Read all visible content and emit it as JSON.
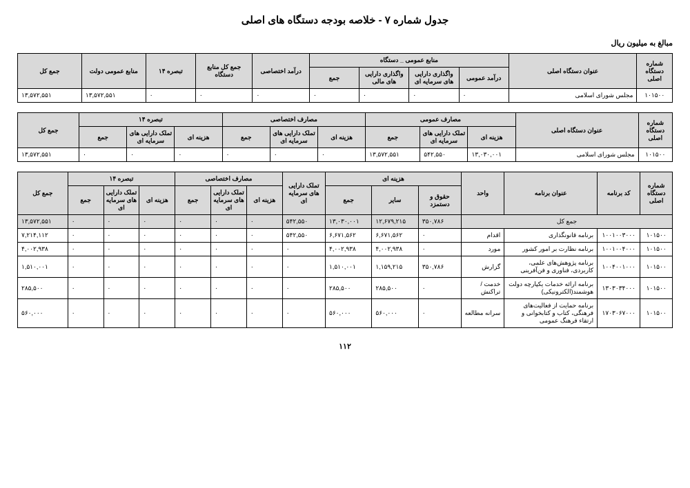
{
  "title": "جدول شماره ۷ - خلاصه بودجه دستگاه های اصلی",
  "currency_note": "مبالغ به میلیون ریال",
  "page_number": "۱۱۲",
  "t1": {
    "h": {
      "code": "شماره دستگاه اصلی",
      "org": "عنوان دستگاه اصلی",
      "public_resources": "منابع عمومی _ دستگاه",
      "general_income": "درآمد عمومی",
      "capital_assignment": "واگذاری دارایی های سرمایه ای",
      "financial_assignment": "واگذاری دارایی های مالی",
      "sum": "جمع",
      "special_income": "درآمد اختصاصی",
      "total_resources": "جمع کل منابع دستگاه",
      "note14": "تبصره ۱۴",
      "gov_resources": "منابع عمومی دولت",
      "grand_total": "جمع کل"
    },
    "row": {
      "code": "۱۰۱۵۰۰",
      "org": "مجلس شورای اسلامی",
      "general_income": "۰",
      "capital_assignment": "۰",
      "financial_assignment": "۰",
      "sum": "۰",
      "special_income": "۰",
      "total_resources": "۰",
      "note14": "۰",
      "gov_resources": "۱۳,۵۷۲,۵۵۱",
      "grand_total": "۱۳,۵۷۲,۵۵۱"
    }
  },
  "t2": {
    "h": {
      "code": "شماره دستگاه اصلی",
      "org": "عنوان دستگاه اصلی",
      "public_expenses": "مصارف عمومی",
      "cost": "هزینه ای",
      "capital_own": "تملک دارایی های سرمایه ای",
      "sum": "جمع",
      "special_expenses": "مصارف اختصاصی",
      "note14": "تبصره ۱۴",
      "grand_total": "جمع کل"
    },
    "row": {
      "code": "۱۰۱۵۰۰",
      "org": "مجلس شورای اسلامی",
      "p_cost": "۱۳,۰۳۰,۰۰۱",
      "p_capital": "۵۴۲,۵۵۰",
      "p_sum": "۱۳,۵۷۲,۵۵۱",
      "s_cost": "۰",
      "s_capital": "۰",
      "s_sum": "۰",
      "n_cost": "۰",
      "n_capital": "۰",
      "n_sum": "۰",
      "grand_total": "۱۳,۵۷۲,۵۵۱"
    }
  },
  "t3": {
    "h": {
      "code": "شماره دستگاه اصلی",
      "program_code": "کد برنامه",
      "program_title": "عنوان برنامه",
      "unit": "واحد",
      "cost_group": "هزینه ای",
      "salary": "حقوق و دستمزد",
      "other": "سایر",
      "sum": "جمع",
      "capital_own": "تملک دارایی های سرمایه ای",
      "special_expenses": "مصارف اختصاصی",
      "cost": "هزینه ای",
      "note14": "تبصره ۱۴",
      "grand_total": "جمع کل",
      "total_sum": "جمع کل"
    },
    "sumrow": {
      "label": "جمع کل",
      "salary": "۳۵۰,۷۸۶",
      "other": "۱۲,۶۷۹,۲۱۵",
      "sum": "۱۳,۰۳۰,۰۰۱",
      "capital": "۵۴۲,۵۵۰",
      "s_cost": "۰",
      "s_capital": "۰",
      "s_sum": "۰",
      "n_cost": "۰",
      "n_capital": "۰",
      "n_sum": "۰",
      "grand_total": "۱۳,۵۷۲,۵۵۱"
    },
    "rows": [
      {
        "code": "۱۰۱۵۰۰",
        "pcode": "۱۰۰۱۰۰۳۰۰۰",
        "title": "برنامه قانونگذاری",
        "unit": "اقدام",
        "salary": "۰",
        "other": "۶,۶۷۱,۵۶۲",
        "sum": "۶,۶۷۱,۵۶۲",
        "capital": "۵۴۲,۵۵۰",
        "s_cost": "۰",
        "s_capital": "۰",
        "s_sum": "۰",
        "n_cost": "۰",
        "n_capital": "۰",
        "n_sum": "۰",
        "grand_total": "۷,۲۱۴,۱۱۲"
      },
      {
        "code": "۱۰۱۵۰۰",
        "pcode": "۱۰۰۱۰۰۴۰۰۰",
        "title": "برنامه نظارت بر امور کشور",
        "unit": "مورد",
        "salary": "۰",
        "other": "۴,۰۰۲,۹۳۸",
        "sum": "۴,۰۰۲,۹۳۸",
        "capital": "۰",
        "s_cost": "۰",
        "s_capital": "۰",
        "s_sum": "۰",
        "n_cost": "۰",
        "n_capital": "۰",
        "n_sum": "۰",
        "grand_total": "۴,۰۰۲,۹۳۸"
      },
      {
        "code": "۱۰۱۵۰۰",
        "pcode": "۱۰۰۴۰۰۱۰۰۰",
        "title": "برنامه پژوهش‌های علمی، کاربردی، فناوری و فن‌آفرینی",
        "unit": "گزارش",
        "salary": "۳۵۰,۷۸۶",
        "other": "۱,۱۵۹,۲۱۵",
        "sum": "۱,۵۱۰,۰۰۱",
        "capital": "۰",
        "s_cost": "۰",
        "s_capital": "۰",
        "s_sum": "۰",
        "n_cost": "۰",
        "n_capital": "۰",
        "n_sum": "۰",
        "grand_total": "۱,۵۱۰,۰۰۱"
      },
      {
        "code": "۱۰۱۵۰۰",
        "pcode": "۱۳۰۳۰۳۴۰۰۰",
        "title": "برنامه ارائه خدمات یکپارچه دولت هوشمند(الکترونیکی)",
        "unit": "خدمت /تراکنش",
        "salary": "۰",
        "other": "۲۸۵,۵۰۰",
        "sum": "۲۸۵,۵۰۰",
        "capital": "۰",
        "s_cost": "۰",
        "s_capital": "۰",
        "s_sum": "۰",
        "n_cost": "۰",
        "n_capital": "۰",
        "n_sum": "۰",
        "grand_total": "۲۸۵,۵۰۰"
      },
      {
        "code": "۱۰۱۵۰۰",
        "pcode": "۱۷۰۳۰۶۷۰۰۰",
        "title": "برنامه حمایت از فعالیت‌های فرهنگی، کتاب و کتابخوانی و ارتقاء فرهنگ عمومی",
        "unit": "سرانه مطالعه",
        "salary": "۰",
        "other": "۵۶۰,۰۰۰",
        "sum": "۵۶۰,۰۰۰",
        "capital": "۰",
        "s_cost": "۰",
        "s_capital": "۰",
        "s_sum": "۰",
        "n_cost": "۰",
        "n_capital": "۰",
        "n_sum": "۰",
        "grand_total": "۵۶۰,۰۰۰"
      }
    ]
  }
}
